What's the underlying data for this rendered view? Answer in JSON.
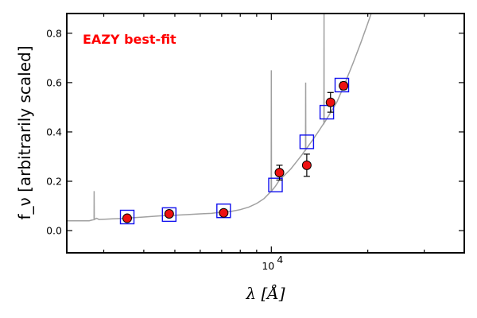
{
  "chart_data": {
    "type": "scatter",
    "title": "",
    "annotation": {
      "text": "EAZY best-fit",
      "color": "#ff0000"
    },
    "xlabel": "λ [Å]",
    "ylabel": "f_ν [arbitrarily scaled]",
    "xscale": "log",
    "xlim": [
      2300,
      40000
    ],
    "ylim": [
      -0.09,
      0.88
    ],
    "x_tick_labels": [
      {
        "value": 10000,
        "label": "10",
        "exponent": "4"
      }
    ],
    "y_ticks": [
      0.0,
      0.2,
      0.4,
      0.6,
      0.8
    ],
    "y_tick_labels": [
      "0.0",
      "0.2",
      "0.4",
      "0.6",
      "0.8"
    ],
    "grid": false,
    "legend": "none",
    "colors": {
      "model": "#a0a0a0",
      "template_box": "#1010ee",
      "observed": "#ee1111"
    },
    "series": [
      {
        "kind": "model_spectrum",
        "x": [
          2300,
          2700,
          2800,
          2850,
          2900,
          3200,
          3500,
          3700,
          4000,
          4500,
          5000,
          5500,
          6000,
          6500,
          7000,
          7500,
          8000,
          8500,
          9000,
          9500,
          10000,
          10300,
          10600,
          11000,
          11500,
          12000,
          12500,
          13000,
          13500,
          14000,
          14500,
          15000,
          15500,
          16000,
          16500,
          17000,
          18000,
          19000,
          20000,
          21000,
          40000
        ],
        "y": [
          0.04,
          0.04,
          0.045,
          0.05,
          0.045,
          0.048,
          0.05,
          0.052,
          0.055,
          0.06,
          0.062,
          0.065,
          0.068,
          0.07,
          0.075,
          0.078,
          0.085,
          0.095,
          0.11,
          0.13,
          0.16,
          0.18,
          0.205,
          0.225,
          0.25,
          0.28,
          0.31,
          0.34,
          0.37,
          0.4,
          0.43,
          0.46,
          0.49,
          0.52,
          0.56,
          0.6,
          0.68,
          0.76,
          0.84,
          0.92,
          0.92
        ],
        "emission_lines": [
          {
            "x": 2800,
            "peak": 0.16
          },
          {
            "x": 10000,
            "peak": 0.65
          },
          {
            "x": 12800,
            "peak": 0.6
          },
          {
            "x": 14600,
            "peak": 0.88
          }
        ]
      },
      {
        "kind": "template_photometry",
        "x": [
          3550,
          4800,
          7100,
          10300,
          12900,
          14900,
          16600
        ],
        "y": [
          0.055,
          0.065,
          0.08,
          0.185,
          0.36,
          0.48,
          0.59
        ]
      },
      {
        "kind": "observed_photometry",
        "x": [
          3550,
          4800,
          7100,
          10600,
          12900,
          15300,
          16800
        ],
        "y": [
          0.05,
          0.068,
          0.072,
          0.235,
          0.265,
          0.52,
          0.587
        ],
        "yerr": [
          0.0,
          0.0,
          0.0,
          0.03,
          0.045,
          0.04,
          0.015
        ]
      }
    ]
  }
}
